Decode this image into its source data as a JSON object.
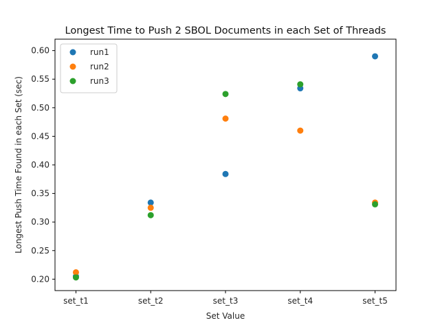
{
  "chart_data": {
    "type": "scatter",
    "title": "Longest Time to Push 2 SBOL Documents in each Set of Threads",
    "xlabel": "Set Value",
    "ylabel": "Longest Push Time Found in each Set (sec)",
    "categories": [
      "set_t1",
      "set_t2",
      "set_t3",
      "set_t4",
      "set_t5"
    ],
    "ylim": [
      0.18,
      0.62
    ],
    "yticks": [
      "0.20",
      "0.25",
      "0.30",
      "0.35",
      "0.40",
      "0.45",
      "0.50",
      "0.55",
      "0.60"
    ],
    "grid": false,
    "legend_position": "top-left",
    "series": [
      {
        "name": "run1",
        "color": "#1f77b4",
        "values": [
          0.205,
          0.334,
          0.384,
          0.534,
          0.59
        ]
      },
      {
        "name": "run2",
        "color": "#ff7f0e",
        "values": [
          0.212,
          0.325,
          0.481,
          0.46,
          0.334
        ]
      },
      {
        "name": "run3",
        "color": "#2ca02c",
        "values": [
          0.203,
          0.312,
          0.524,
          0.541,
          0.331
        ]
      }
    ]
  }
}
